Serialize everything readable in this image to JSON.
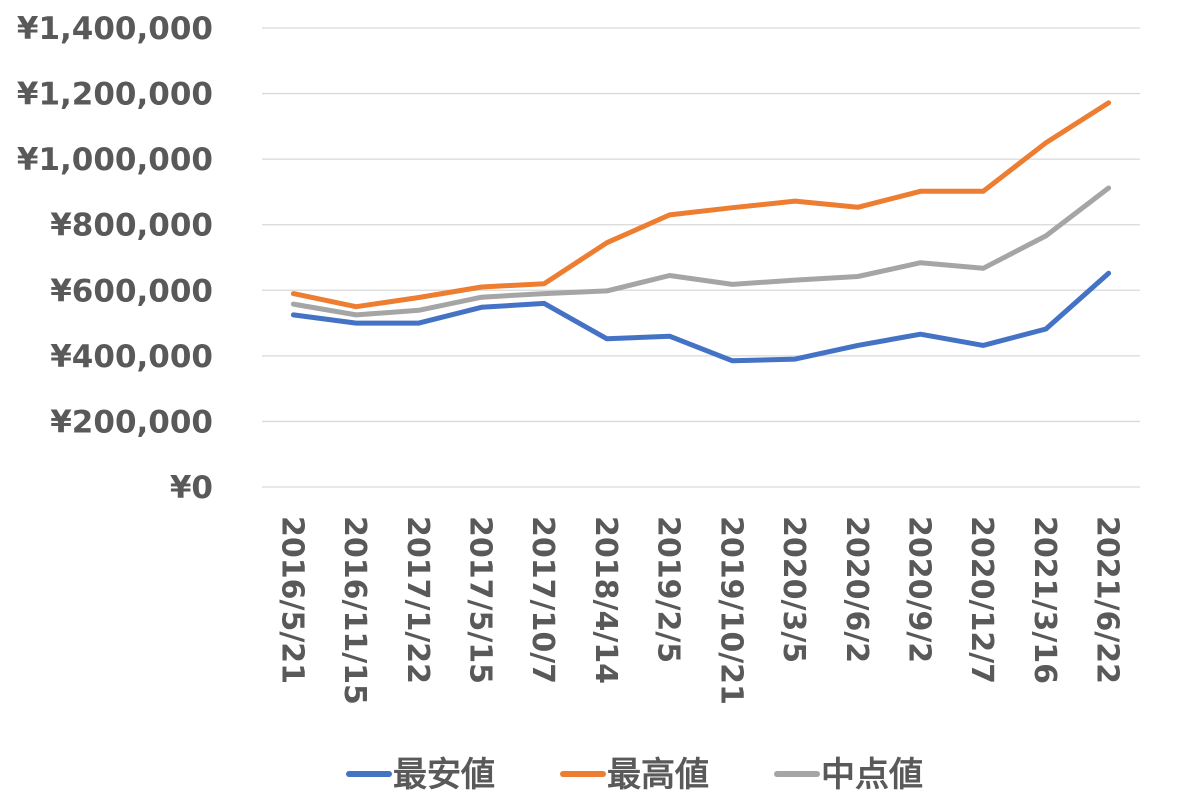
{
  "chart_data": {
    "type": "line",
    "categories": [
      "2016/5/21",
      "2016/11/15",
      "2017/1/22",
      "2017/5/15",
      "2017/10/7",
      "2018/4/14",
      "2019/2/5",
      "2019/10/21",
      "2020/3/5",
      "2020/6/2",
      "2020/9/2",
      "2020/12/7",
      "2021/3/16",
      "2021/6/22"
    ],
    "series": [
      {
        "name": "最安値",
        "color": "#4472C4",
        "values": [
          525000,
          500000,
          500000,
          548000,
          560000,
          452000,
          460000,
          385000,
          390000,
          432000,
          466000,
          432000,
          482000,
          652000
        ]
      },
      {
        "name": "最高値",
        "color": "#ED7D31",
        "values": [
          590000,
          550000,
          578000,
          610000,
          620000,
          745000,
          830000,
          852000,
          872000,
          853000,
          902000,
          902000,
          1050000,
          1172000
        ]
      },
      {
        "name": "中点値",
        "color": "#A5A5A5",
        "values": [
          558000,
          525000,
          539000,
          579000,
          590000,
          598000,
          645000,
          618000,
          631000,
          642000,
          684000,
          667000,
          766000,
          912000
        ]
      }
    ],
    "ylim": [
      0,
      1400000
    ],
    "yticks": [
      "¥0",
      "¥200,000",
      "¥400,000",
      "¥600,000",
      "¥800,000",
      "¥1,000,000",
      "¥1,200,000",
      "¥1,400,000"
    ],
    "ytick_values": [
      0,
      200000,
      400000,
      600000,
      800000,
      1000000,
      1200000,
      1400000
    ],
    "grid": true,
    "legend_position": "bottom",
    "gridline_color": "#D9D9D9",
    "text_color": "#595959"
  }
}
